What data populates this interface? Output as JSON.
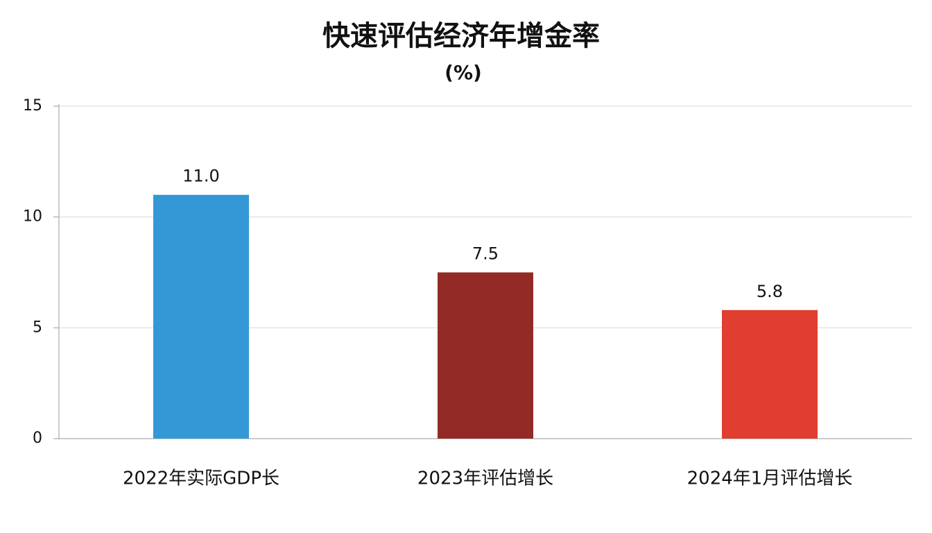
{
  "chart_data": {
    "type": "bar",
    "title": "快速评估经济年增金率",
    "subtitle": "(%)",
    "categories": [
      "2022年实际GDP长",
      "2023年评估增长",
      "2024年1月评估增长"
    ],
    "values": [
      11.0,
      7.5,
      5.8
    ],
    "value_labels": [
      "11.0",
      "7.5",
      "5.8"
    ],
    "colors": [
      "#3498d6",
      "#922a25",
      "#e03e30"
    ],
    "ylim": [
      0,
      15
    ],
    "yticks": [
      0,
      5,
      10,
      15
    ],
    "grid": true
  }
}
